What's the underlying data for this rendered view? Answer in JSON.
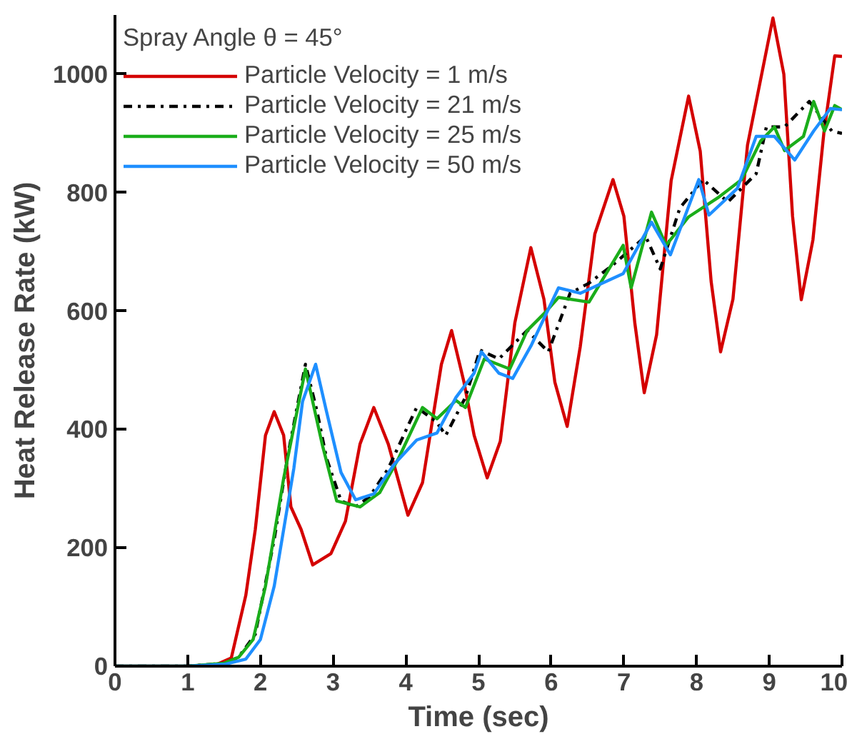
{
  "chart_data": {
    "type": "line",
    "xlabel": "Time (sec)",
    "ylabel": "Heat Release Rate (kW)",
    "legend_title": "Spray Angle θ = 45°",
    "xlim": [
      0,
      10
    ],
    "ylim": [
      0,
      1100
    ],
    "xticks": [
      0,
      1,
      2,
      3,
      4,
      5,
      6,
      7,
      8,
      9,
      10
    ],
    "yticks": [
      0,
      200,
      400,
      600,
      800,
      1000
    ],
    "grid": false,
    "legend": "top left",
    "marker": "none",
    "series": [
      {
        "name": "Particle Velocity = 1 m/s",
        "color": "#d40000",
        "line_style": "solid",
        "x": [
          0,
          1.0,
          1.4,
          1.6,
          1.8,
          1.93,
          2.07,
          2.19,
          2.32,
          2.42,
          2.56,
          2.72,
          2.97,
          3.17,
          3.37,
          3.56,
          3.76,
          4.03,
          4.23,
          4.49,
          4.63,
          4.8,
          4.94,
          5.12,
          5.3,
          5.5,
          5.72,
          5.9,
          6.05,
          6.22,
          6.4,
          6.6,
          6.85,
          7.0,
          7.15,
          7.28,
          7.45,
          7.65,
          7.89,
          8.05,
          8.2,
          8.33,
          8.5,
          8.7,
          9.05,
          9.2,
          9.32,
          9.44,
          9.6,
          9.75,
          9.9,
          10
        ],
        "values": [
          0,
          0,
          3,
          14,
          120,
          231,
          390,
          430,
          390,
          269,
          231,
          171,
          190,
          245,
          375,
          437,
          375,
          255,
          310,
          510,
          567,
          480,
          390,
          318,
          380,
          580,
          707,
          620,
          480,
          405,
          540,
          730,
          822,
          760,
          580,
          462,
          560,
          820,
          963,
          870,
          650,
          531,
          620,
          880,
          1095,
          1000,
          760,
          619,
          720,
          900,
          1031,
          1030
        ]
      },
      {
        "name": "Particle Velocity = 21 m/s",
        "color": "#000000",
        "line_style": "dashdot",
        "x": [
          0,
          1.0,
          1.5,
          1.7,
          1.93,
          2.19,
          2.38,
          2.62,
          2.78,
          2.91,
          3.11,
          3.31,
          3.5,
          3.76,
          4.03,
          4.15,
          4.42,
          4.55,
          4.82,
          5.02,
          5.28,
          5.67,
          5.96,
          6.26,
          6.52,
          6.85,
          7.3,
          7.5,
          7.77,
          8.09,
          8.43,
          8.82,
          8.96,
          9.21,
          9.55,
          9.86,
          10
        ],
        "values": [
          0,
          0,
          5,
          15,
          54,
          214,
          358,
          510,
          430,
          351,
          279,
          269,
          286,
          334,
          406,
          437,
          413,
          390,
          454,
          534,
          519,
          567,
          531,
          630,
          647,
          678,
          726,
          671,
          774,
          822,
          784,
          832,
          911,
          911,
          954,
          904,
          900
        ]
      },
      {
        "name": "Particle Velocity = 25 m/s",
        "color": "#1aad1a",
        "line_style": "solid",
        "x": [
          0,
          1.0,
          1.5,
          1.7,
          1.9,
          2.07,
          2.32,
          2.62,
          2.85,
          3.05,
          3.37,
          3.64,
          3.9,
          4.23,
          4.43,
          4.69,
          4.82,
          5.08,
          5.43,
          5.67,
          5.93,
          6.1,
          6.52,
          6.99,
          7.1,
          7.38,
          7.58,
          7.89,
          8.29,
          8.62,
          8.88,
          9.07,
          9.21,
          9.47,
          9.61,
          9.76,
          9.9,
          10
        ],
        "values": [
          0,
          0,
          5,
          15,
          45,
          135,
          317,
          502,
          375,
          279,
          269,
          293,
          351,
          437,
          418,
          449,
          437,
          519,
          502,
          567,
          599,
          623,
          615,
          711,
          639,
          767,
          711,
          759,
          791,
          822,
          887,
          911,
          871,
          895,
          954,
          904,
          947,
          940
        ]
      },
      {
        "name": "Particle Velocity = 50 m/s",
        "color": "#1e8fff",
        "line_style": "solid",
        "x": [
          0,
          1.0,
          1.5,
          1.8,
          2.0,
          2.19,
          2.46,
          2.58,
          2.76,
          2.91,
          3.11,
          3.31,
          3.56,
          3.84,
          4.15,
          4.43,
          4.69,
          4.94,
          5.04,
          5.28,
          5.47,
          5.73,
          6.1,
          6.4,
          6.99,
          7.38,
          7.64,
          8.03,
          8.17,
          8.56,
          8.82,
          9.07,
          9.35,
          9.61,
          9.84,
          10
        ],
        "values": [
          0,
          0,
          3,
          12,
          45,
          135,
          334,
          447,
          510,
          430,
          327,
          281,
          291,
          341,
          382,
          394,
          454,
          495,
          531,
          495,
          486,
          543,
          639,
          630,
          663,
          750,
          695,
          822,
          762,
          807,
          895,
          895,
          855,
          904,
          942,
          940
        ]
      }
    ]
  }
}
